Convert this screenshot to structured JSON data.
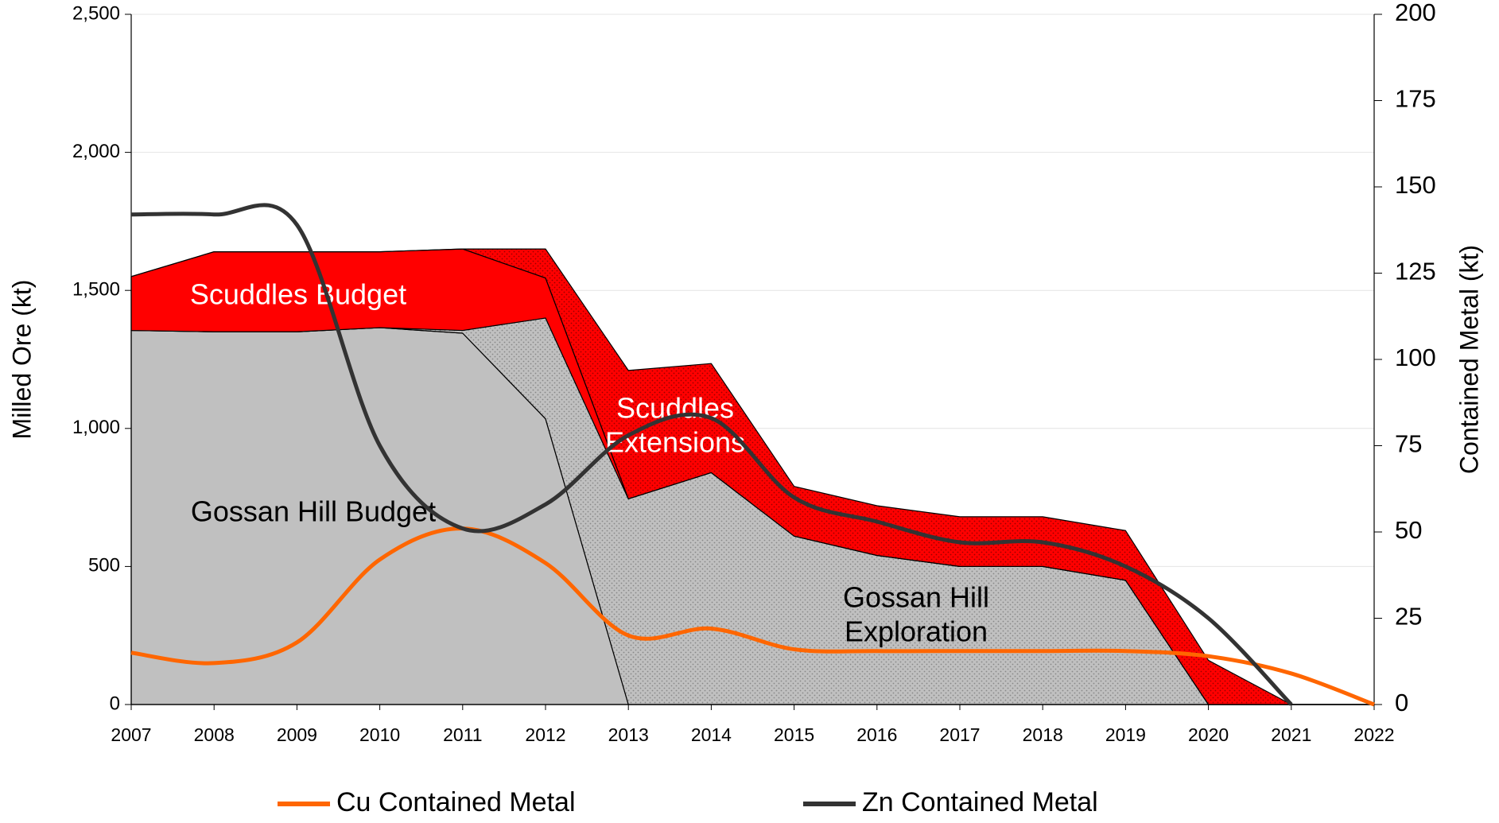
{
  "chart_data": {
    "type": "stacked_area_line",
    "categories": [
      "2007",
      "2008",
      "2009",
      "2010",
      "2011",
      "2012",
      "2013",
      "2014",
      "2015",
      "2016",
      "2017",
      "2018",
      "2019",
      "2020",
      "2021",
      "2022"
    ],
    "ylabel": "Milled Ore (kt)",
    "y2label": "Contained Metal (kt)",
    "ylim": [
      0,
      2500
    ],
    "yticks": [
      0,
      500,
      {
        "value": 1000,
        "label": "1,000"
      },
      {
        "value": 1500,
        "label": "1,500"
      },
      {
        "value": 2000,
        "label": "2,000"
      },
      {
        "value": 2500,
        "label": "2,500"
      }
    ],
    "y2lim": [
      0,
      200
    ],
    "y2ticks": [
      0,
      25,
      50,
      75,
      100,
      125,
      150,
      175,
      200
    ],
    "grid": true,
    "legend": "bottom",
    "series": [
      {
        "name": "Gossan Hill Budget",
        "color": "#c0c0c0",
        "kind": "area",
        "values": [
          1355,
          1350,
          1350,
          1365,
          1345,
          1035,
          0,
          0,
          0,
          0,
          0,
          0,
          0,
          0,
          0,
          0
        ]
      },
      {
        "name": "Gossan Hill\nExploration",
        "color": "#c0c0c0",
        "kind": "area",
        "pattern": "dots",
        "values": [
          0,
          0,
          0,
          0,
          10,
          365,
          745,
          840,
          610,
          540,
          500,
          500,
          450,
          0,
          0,
          0
        ]
      },
      {
        "name": "Scuddles Budget",
        "color": "#ff0000",
        "kind": "area",
        "values": [
          195,
          290,
          290,
          275,
          295,
          145,
          0,
          0,
          0,
          0,
          0,
          0,
          0,
          0,
          0,
          0
        ]
      },
      {
        "name": "Scuddles\nExtensions",
        "color": "#ff0000",
        "kind": "area",
        "pattern": "dots",
        "values": [
          0,
          0,
          0,
          0,
          0,
          105,
          465,
          395,
          180,
          180,
          180,
          180,
          180,
          160,
          0,
          0
        ]
      },
      {
        "name": "Cu Contained Metal",
        "color": "#ff6600",
        "kind": "line",
        "axis": "y2",
        "values": [
          15,
          12,
          18,
          42,
          51,
          41,
          20,
          22,
          16,
          15.5,
          15.5,
          15.5,
          15.5,
          14,
          9,
          0
        ]
      },
      {
        "name": "Zn Contained Metal",
        "color": "#333333",
        "kind": "line",
        "axis": "y2",
        "values": [
          142,
          142,
          139,
          75,
          51,
          58,
          78,
          83,
          60,
          53,
          47,
          47,
          40,
          25,
          0,
          null
        ]
      }
    ]
  }
}
